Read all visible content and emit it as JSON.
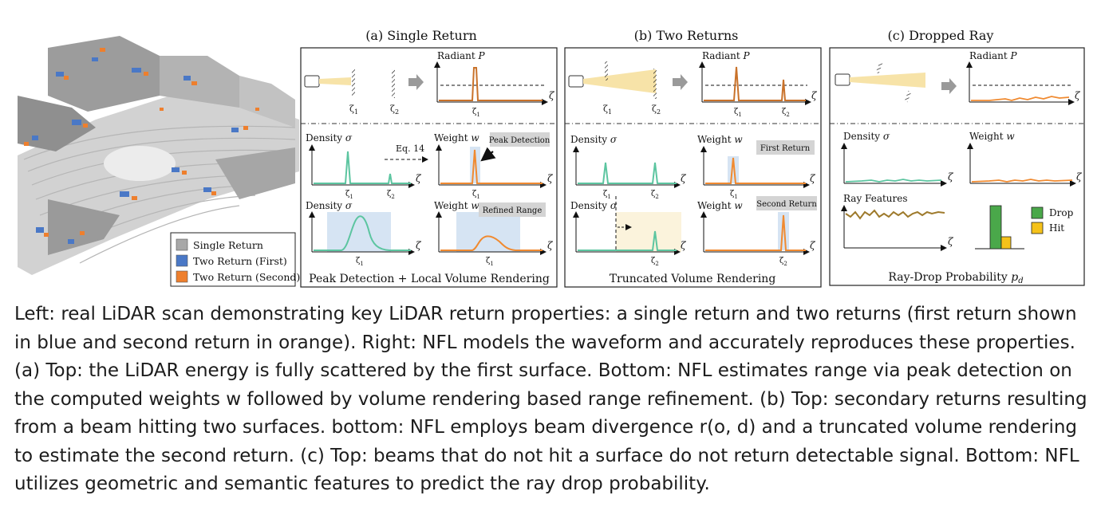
{
  "legend": {
    "single": "Single Return",
    "first": "Two Return (First)",
    "second": "Two Return (Second)"
  },
  "colors": {
    "single": "#a8a8a8",
    "first": "#4a78c6",
    "second": "#ee7f2d",
    "density": "#5cc5a0",
    "weight": "#f08a30",
    "feature": "#9e7a2c",
    "drop": "#4aa84a",
    "hit": "#f5c21a",
    "highlight": "#d6e4f3",
    "truncated": "#fbf3dc",
    "badge": "#d4d4d4"
  },
  "panel_a": {
    "title": "(a) Single Return",
    "radiant": "Radiant",
    "P": "P",
    "zeta": "ζ",
    "z1": "ζ",
    "z2": "ζ",
    "sub1": "1",
    "sub2": "2",
    "density": "Density",
    "sigma": "σ",
    "weight": "Weight",
    "w": "w",
    "eq": "Eq. 14",
    "peak_badge": "Peak Detection",
    "refined_badge": "Refined Range",
    "footer": "Peak Detection + Local Volume Rendering"
  },
  "panel_b": {
    "title": "(b) Two Returns",
    "radiant": "Radiant",
    "P": "P",
    "zeta": "ζ",
    "density": "Density",
    "sigma": "σ",
    "weight": "Weight",
    "w": "w",
    "first_badge": "First Return",
    "second_badge": "Second Return",
    "footer": "Truncated Volume Rendering"
  },
  "panel_c": {
    "title": "(c) Dropped Ray",
    "radiant": "Radiant",
    "P": "P",
    "zeta": "ζ",
    "density": "Density",
    "sigma": "σ",
    "weight": "Weight",
    "w": "w",
    "ray_features": "Ray Features",
    "drop": "Drop",
    "hit": "Hit",
    "footer": "Ray-Drop Probability",
    "pd": "p",
    "pd_sub": "d"
  },
  "caption": "Left: real LiDAR scan demonstrating key LiDAR return properties: a single return and two returns (first return shown in blue and second return in orange). Right: NFL models the waveform and accurately reproduces these properties. (a) Top: the LiDAR energy is fully scattered by the first surface. Bottom: NFL estimates range via peak detection on the computed weights w followed by volume rendering based range refinement. (b) Top: secondary returns resulting from a beam hitting two surfaces. bottom: NFL employs beam divergence r(o, d) and a truncated volume rendering to estimate the second return. (c) Top: beams that do not hit a surface do not return detectable signal. Bottom: NFL utilizes geometric and semantic features to predict the ray drop probability."
}
